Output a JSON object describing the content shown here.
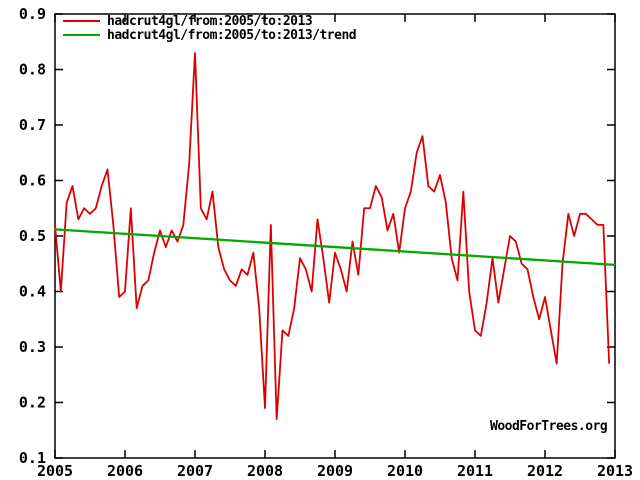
{
  "watermark": {
    "text": "WoodForTrees.org"
  },
  "colors": {
    "background": "#ffffff",
    "axis": "#000000",
    "series_red": "#dd0000",
    "trend_green": "#00aa00"
  },
  "legend": {
    "position": "top-left",
    "entries": [
      {
        "label": "hadcrut4gl/from:2005/to:2013",
        "color": "#dd0000"
      },
      {
        "label": "hadcrut4gl/from:2005/to:2013/trend",
        "color": "#00aa00"
      }
    ]
  },
  "chart_data": {
    "type": "line",
    "title": "",
    "xlabel": "",
    "ylabel": "",
    "grid": false,
    "legend_position": "top-left",
    "xlim": [
      2005,
      2013
    ],
    "ylim": [
      0.1,
      0.9
    ],
    "xticks": [
      2005,
      2006,
      2007,
      2008,
      2009,
      2010,
      2011,
      2012,
      2013
    ],
    "yticks": [
      0.1,
      0.2,
      0.3,
      0.4,
      0.5,
      0.6,
      0.7,
      0.8,
      0.9
    ],
    "series": [
      {
        "name": "hadcrut4gl/from:2005/to:2013",
        "color": "#dd0000",
        "cadence": "monthly",
        "start": "2005-01",
        "end": "2012-12",
        "values": [
          0.52,
          0.4,
          0.56,
          0.59,
          0.53,
          0.55,
          0.54,
          0.55,
          0.59,
          0.62,
          0.52,
          0.39,
          0.4,
          0.55,
          0.37,
          0.41,
          0.42,
          0.47,
          0.51,
          0.48,
          0.51,
          0.49,
          0.52,
          0.63,
          0.83,
          0.55,
          0.53,
          0.58,
          0.48,
          0.44,
          0.42,
          0.41,
          0.44,
          0.43,
          0.47,
          0.37,
          0.19,
          0.52,
          0.17,
          0.33,
          0.32,
          0.37,
          0.46,
          0.44,
          0.4,
          0.53,
          0.46,
          0.38,
          0.47,
          0.44,
          0.4,
          0.49,
          0.43,
          0.55,
          0.55,
          0.59,
          0.57,
          0.51,
          0.54,
          0.47,
          0.55,
          0.58,
          0.65,
          0.68,
          0.59,
          0.58,
          0.61,
          0.56,
          0.46,
          0.42,
          0.58,
          0.4,
          0.33,
          0.32,
          0.38,
          0.46,
          0.38,
          0.44,
          0.5,
          0.49,
          0.45,
          0.44,
          0.39,
          0.35,
          0.39,
          0.33,
          0.27,
          0.45,
          0.54,
          0.5,
          0.54,
          0.54,
          0.53,
          0.52,
          0.52,
          0.27
        ]
      },
      {
        "name": "hadcrut4gl/from:2005/to:2013/trend",
        "color": "#00aa00",
        "trend_endpoints": {
          "x": [
            2005.0,
            2013.0
          ],
          "y": [
            0.512,
            0.448
          ]
        }
      }
    ]
  }
}
